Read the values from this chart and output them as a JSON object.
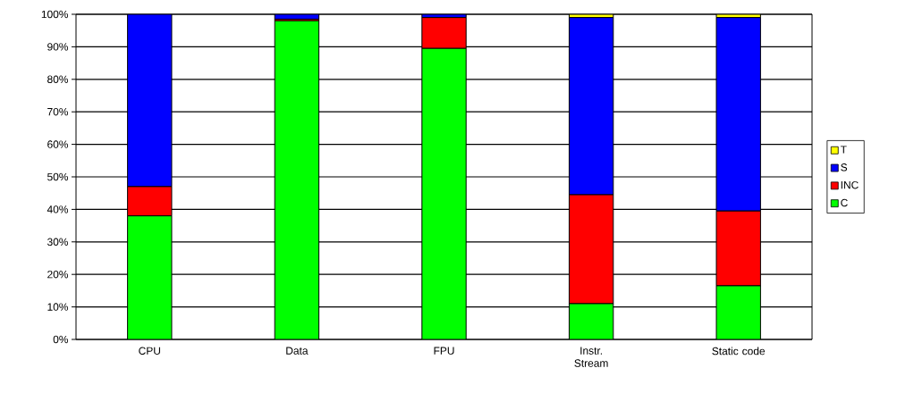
{
  "chart_data": {
    "type": "bar",
    "stacked": true,
    "categories": [
      "CPU",
      "Data",
      "FPU",
      "Instr. Stream",
      "Static code"
    ],
    "series": [
      {
        "name": "C",
        "color": "#00ff00",
        "values": [
          38,
          98,
          89.5,
          11,
          16.5
        ]
      },
      {
        "name": "INC",
        "color": "#ff0000",
        "values": [
          9,
          0.5,
          9.5,
          33.5,
          23
        ]
      },
      {
        "name": "S",
        "color": "#0000ff",
        "values": [
          53,
          1.5,
          1,
          54.5,
          59.5
        ]
      },
      {
        "name": "T",
        "color": "#ffff00",
        "values": [
          0,
          0,
          0,
          1,
          1
        ]
      }
    ],
    "ylim": [
      0,
      100
    ],
    "yticks": [
      {
        "value": 0,
        "label": "0%"
      },
      {
        "value": 10,
        "label": "10%"
      },
      {
        "value": 20,
        "label": "20%"
      },
      {
        "value": 30,
        "label": "30%"
      },
      {
        "value": 40,
        "label": "40%"
      },
      {
        "value": 50,
        "label": "50%"
      },
      {
        "value": 60,
        "label": "60%"
      },
      {
        "value": 70,
        "label": "70%"
      },
      {
        "value": 80,
        "label": "80%"
      },
      {
        "value": 90,
        "label": "90%"
      },
      {
        "value": 100,
        "label": "100%"
      }
    ],
    "grid": "y",
    "legend": "right"
  }
}
